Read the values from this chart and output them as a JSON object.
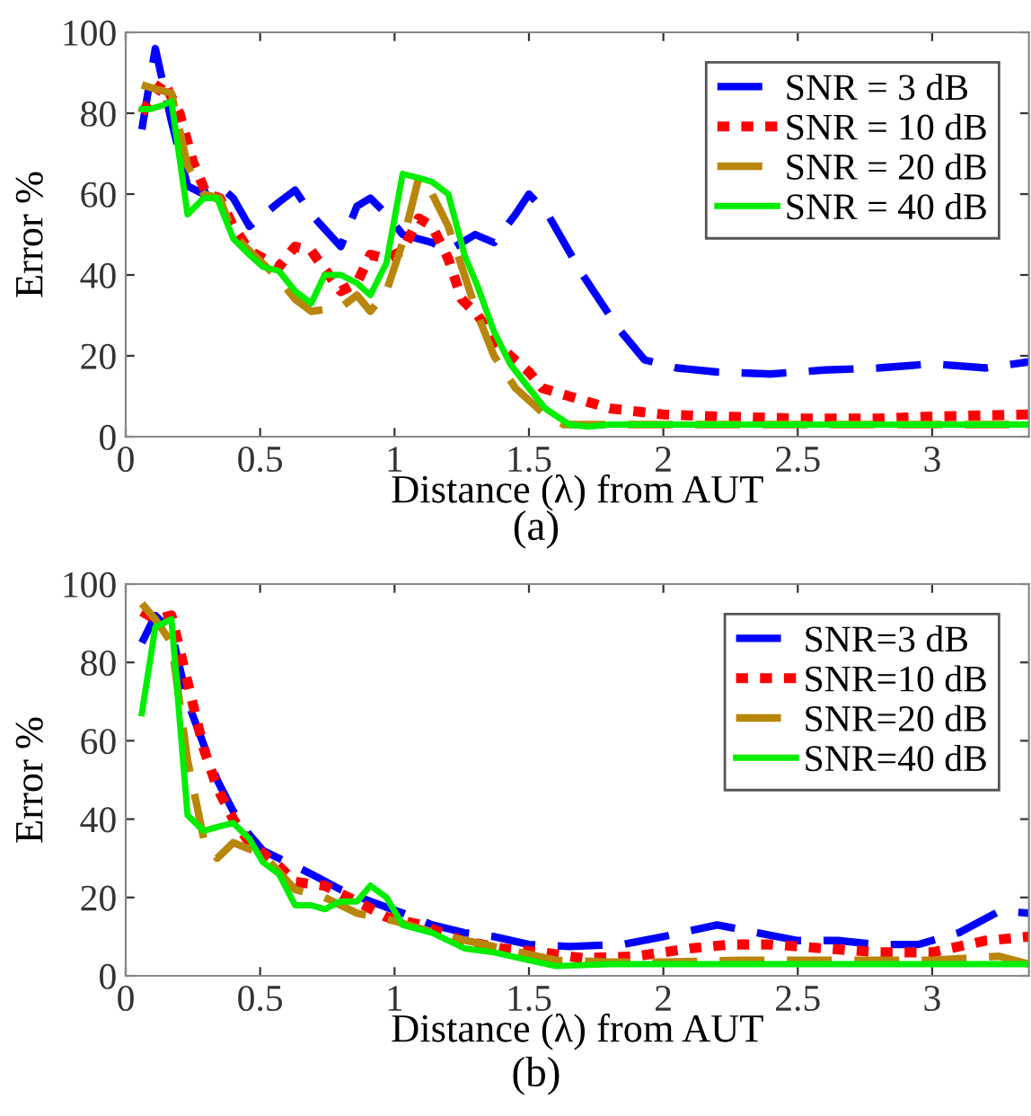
{
  "chart_data": [
    {
      "type": "line",
      "xlabel": "Distance (λ) from AUT",
      "ylabel": "Error %",
      "annotations": [
        "(a)"
      ],
      "xlim": [
        0,
        3.36
      ],
      "ylim": [
        0,
        100
      ],
      "xticks": [
        0,
        0.5,
        1,
        1.5,
        2,
        2.5,
        3
      ],
      "yticks": [
        0,
        20,
        40,
        60,
        80,
        100
      ],
      "grid": false,
      "legend": "top right",
      "series": [
        {
          "name": "SNR = 3 dB",
          "color": "#0000ff",
          "line_style": "dashed",
          "x": [
            0.06,
            0.11,
            0.17,
            0.23,
            0.29,
            0.35,
            0.4,
            0.46,
            0.57,
            0.63,
            0.69,
            0.8,
            0.86,
            0.91,
            0.97,
            1.03,
            1.14,
            1.2,
            1.3,
            1.37,
            1.45,
            1.5,
            1.57,
            1.7,
            1.83,
            1.93,
            2.05,
            2.2,
            2.4,
            2.6,
            2.8,
            3.0,
            3.2,
            3.36
          ],
          "values": [
            76,
            96,
            78,
            62,
            60,
            62,
            59,
            52,
            58,
            61,
            55,
            47,
            57,
            59,
            55,
            50,
            48,
            46,
            50,
            48,
            55,
            60,
            55,
            40,
            27,
            19,
            17,
            16,
            15.5,
            16.5,
            17,
            18,
            17,
            18.5
          ]
        },
        {
          "name": "SNR = 10 dB",
          "color": "#ff0000",
          "line_style": "dotted",
          "x": [
            0.06,
            0.11,
            0.14,
            0.2,
            0.25,
            0.3,
            0.35,
            0.4,
            0.46,
            0.57,
            0.63,
            0.69,
            0.8,
            0.86,
            0.91,
            0.97,
            1.03,
            1.09,
            1.14,
            1.2,
            1.25,
            1.31,
            1.37,
            1.43,
            1.5,
            1.55,
            1.65,
            1.8,
            2.0,
            2.2,
            2.5,
            2.8,
            3.0,
            3.36
          ],
          "values": [
            80,
            85,
            88,
            80,
            68,
            60,
            59,
            52,
            46,
            42,
            47,
            46,
            36,
            38,
            45,
            44,
            46,
            54,
            52,
            44,
            34,
            30,
            24,
            20,
            16,
            12,
            10,
            7,
            5.5,
            5,
            4.5,
            4.5,
            5,
            5.5
          ]
        },
        {
          "name": "SNR = 20 dB",
          "color": "#b8860b",
          "line_style": "dashed",
          "x": [
            0.06,
            0.11,
            0.17,
            0.23,
            0.29,
            0.35,
            0.4,
            0.46,
            0.57,
            0.63,
            0.69,
            0.8,
            0.86,
            0.91,
            0.97,
            1.03,
            1.09,
            1.14,
            1.2,
            1.26,
            1.31,
            1.37,
            1.45,
            1.55,
            1.63,
            1.75,
            2.0,
            2.5,
            3.0,
            3.36
          ],
          "values": [
            87,
            86,
            85,
            67,
            60,
            59,
            50,
            46,
            39,
            34,
            31,
            32,
            35,
            31,
            36,
            48,
            64,
            60,
            52,
            40,
            30,
            20,
            12,
            6,
            3,
            3,
            3,
            3,
            3,
            3
          ]
        },
        {
          "name": "SNR = 40 dB",
          "color": "#00ee00",
          "line_style": "solid",
          "x": [
            0.06,
            0.09,
            0.14,
            0.17,
            0.23,
            0.29,
            0.34,
            0.4,
            0.46,
            0.51,
            0.57,
            0.63,
            0.69,
            0.74,
            0.8,
            0.86,
            0.91,
            0.97,
            1.03,
            1.09,
            1.14,
            1.2,
            1.26,
            1.31,
            1.37,
            1.43,
            1.5,
            1.56,
            1.65,
            1.72,
            1.8,
            2.0,
            2.5,
            3.0,
            3.36
          ],
          "values": [
            81,
            81,
            82,
            83,
            55,
            59,
            59,
            49,
            45,
            42,
            41,
            36,
            33,
            40,
            40,
            38,
            35,
            43,
            65,
            64,
            63,
            60,
            45,
            37,
            26,
            18,
            12,
            7,
            3,
            2.5,
            3,
            3,
            3,
            3,
            3
          ]
        }
      ]
    },
    {
      "type": "line",
      "xlabel": "Distance (λ) from AUT",
      "ylabel": "Error %",
      "annotations": [
        "(b)"
      ],
      "xlim": [
        0,
        3.36
      ],
      "ylim": [
        0,
        100
      ],
      "xticks": [
        0,
        0.5,
        1,
        1.5,
        2,
        2.5,
        3
      ],
      "yticks": [
        0,
        20,
        40,
        60,
        80,
        100
      ],
      "grid": false,
      "legend": "top right",
      "series": [
        {
          "name": "SNR=3 dB",
          "color": "#0000ff",
          "line_style": "dashed",
          "x": [
            0.06,
            0.11,
            0.17,
            0.23,
            0.29,
            0.34,
            0.4,
            0.46,
            0.51,
            0.57,
            0.69,
            0.8,
            0.91,
            1.03,
            1.14,
            1.26,
            1.37,
            1.5,
            1.65,
            1.85,
            2.0,
            2.2,
            2.35,
            2.5,
            2.65,
            2.8,
            2.95,
            3.1,
            3.25,
            3.36
          ],
          "values": [
            85,
            92,
            88,
            70,
            59,
            50,
            42,
            36,
            32,
            30,
            26,
            22,
            19,
            16,
            13,
            11,
            10,
            8,
            7.5,
            8,
            10,
            13,
            11,
            9,
            9,
            8,
            8,
            11,
            16.5,
            16
          ]
        },
        {
          "name": "SNR=10 dB",
          "color": "#ff0000",
          "line_style": "dotted",
          "x": [
            0.06,
            0.11,
            0.17,
            0.23,
            0.29,
            0.34,
            0.4,
            0.46,
            0.57,
            0.63,
            0.74,
            0.86,
            0.97,
            1.1,
            1.25,
            1.4,
            1.55,
            1.7,
            1.9,
            2.1,
            2.25,
            2.4,
            2.6,
            2.8,
            3.0,
            3.2,
            3.36
          ],
          "values": [
            93,
            91,
            92,
            75,
            58,
            48,
            40,
            34,
            28,
            24,
            23,
            19,
            15,
            13,
            9,
            7,
            6,
            4.5,
            5,
            7,
            8,
            8,
            7,
            6,
            6,
            9,
            10
          ]
        },
        {
          "name": "SNR=20 dB",
          "color": "#b8860b",
          "line_style": "dashed",
          "x": [
            0.06,
            0.11,
            0.17,
            0.23,
            0.29,
            0.34,
            0.4,
            0.51,
            0.63,
            0.74,
            0.86,
            1.0,
            1.2,
            1.4,
            1.6,
            1.8,
            2.0,
            2.3,
            2.6,
            3.0,
            3.25,
            3.36
          ],
          "values": [
            95,
            91,
            85,
            55,
            35,
            30,
            34,
            31,
            22,
            20,
            16,
            14,
            10,
            7,
            4,
            3.5,
            3.5,
            4,
            4,
            4,
            5,
            3
          ]
        },
        {
          "name": "SNR=40 dB",
          "color": "#00ee00",
          "line_style": "solid",
          "x": [
            0.06,
            0.11,
            0.17,
            0.23,
            0.29,
            0.34,
            0.4,
            0.46,
            0.51,
            0.57,
            0.63,
            0.69,
            0.74,
            0.8,
            0.86,
            0.91,
            0.97,
            1.03,
            1.14,
            1.26,
            1.37,
            1.5,
            1.6,
            1.8,
            2.0,
            2.5,
            3.0,
            3.36
          ],
          "values": [
            67,
            89,
            91,
            41,
            37,
            38,
            39,
            35,
            29,
            26,
            18,
            18,
            17,
            19,
            19,
            23,
            20,
            13,
            11,
            7,
            6,
            4,
            2.5,
            3,
            3,
            3,
            3,
            3
          ]
        }
      ]
    }
  ]
}
